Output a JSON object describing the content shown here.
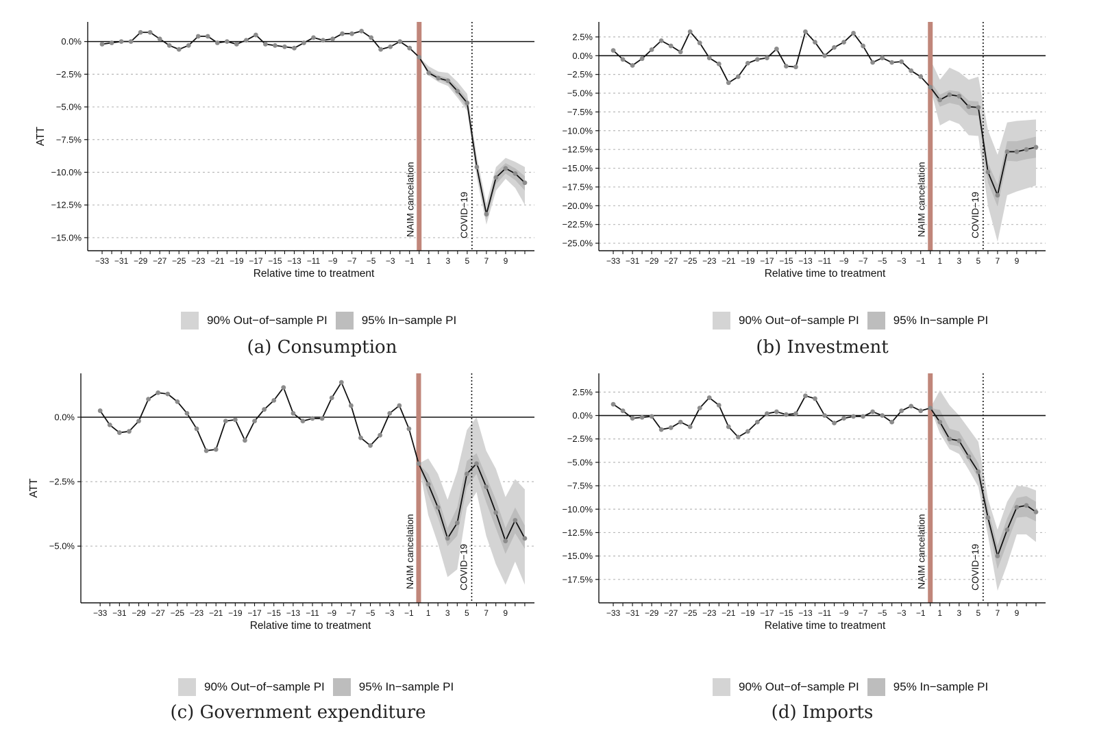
{
  "legend": {
    "out_label": "90% Out−of−sample PI",
    "in_label": "95% In−sample PI",
    "out_color": "#d4d4d4",
    "in_color": "#bdbdbd"
  },
  "chart_data": [
    {
      "type": "line",
      "caption": "(a) Consumption",
      "ylabel": "ATT",
      "xlabel": "Relative time to treatment",
      "x": [
        -33,
        -32,
        -31,
        -30,
        -29,
        -28,
        -27,
        -26,
        -25,
        -24,
        -23,
        -22,
        -21,
        -20,
        -19,
        -18,
        -17,
        -16,
        -15,
        -14,
        -13,
        -12,
        -11,
        -10,
        -9,
        -8,
        -7,
        -6,
        -5,
        -4,
        -3,
        -2,
        -1,
        0,
        1,
        2,
        3,
        4,
        5,
        6,
        7,
        8,
        9,
        10,
        11
      ],
      "values": [
        -0.2,
        -0.1,
        0.0,
        0.0,
        0.7,
        0.7,
        0.2,
        -0.3,
        -0.6,
        -0.3,
        0.4,
        0.4,
        -0.1,
        0.0,
        -0.2,
        0.1,
        0.5,
        -0.2,
        -0.3,
        -0.4,
        -0.5,
        -0.1,
        0.3,
        0.1,
        0.2,
        0.6,
        0.6,
        0.8,
        0.3,
        -0.6,
        -0.4,
        0.0,
        -0.5,
        -1.2,
        -2.4,
        -2.8,
        -3.0,
        -3.8,
        -4.7,
        -9.6,
        -13.2,
        -10.4,
        -9.7,
        -10.1,
        -10.8
      ],
      "band_start": 0,
      "pi_out_lower": [
        -1.2,
        -2.6,
        -3.1,
        -3.4,
        -4.3,
        -5.3,
        -10.4,
        -14.0,
        -11.4,
        -10.5,
        -11.2,
        -12.5
      ],
      "pi_out_upper": [
        -1.2,
        -1.9,
        -2.3,
        -2.4,
        -3.1,
        -4.0,
        -8.8,
        -12.4,
        -9.6,
        -8.9,
        -9.2,
        -9.6
      ],
      "pi_in_lower": [
        -1.2,
        -2.5,
        -2.9,
        -3.2,
        -4.1,
        -5.1,
        -9.9,
        -13.6,
        -10.9,
        -10.1,
        -10.6,
        -11.4
      ],
      "pi_in_upper": [
        -1.2,
        -2.2,
        -2.6,
        -2.8,
        -3.5,
        -4.4,
        -9.2,
        -12.9,
        -10.0,
        -9.3,
        -9.7,
        -10.3
      ],
      "ylim": [
        -16.0,
        1.5
      ],
      "yticks": [
        0,
        -2.5,
        -5,
        -7.5,
        -10,
        -12.5,
        -15
      ],
      "ytick_labels": [
        "0.0%",
        "−2.5%",
        "−5.0%",
        "−7.5%",
        "−10.0%",
        "−12.5%",
        "−15.0%"
      ],
      "xticks": [
        -33,
        -31,
        -29,
        -27,
        -25,
        -23,
        -21,
        -19,
        -17,
        -15,
        -13,
        -11,
        -9,
        -7,
        -5,
        -3,
        -1,
        1,
        3,
        5,
        7,
        9
      ],
      "xtick_labels": [
        "−33",
        "−31",
        "−29",
        "−27",
        "−25",
        "−23",
        "−21",
        "−19",
        "−17",
        "−15",
        "−13",
        "−11",
        "−9",
        "−7",
        "−5",
        "−3",
        "−1",
        "1",
        "3",
        "5",
        "7",
        "9"
      ],
      "xlim": [
        -34.5,
        12
      ],
      "vline_naim": 0,
      "vline_covid": 5.5,
      "naim_label": "NAIM cancelation",
      "covid_label": "COVID−19",
      "naim_color": "#c0867a",
      "line_color": "#111111"
    },
    {
      "type": "line",
      "caption": "(b) Investment",
      "ylabel": "ATT",
      "xlabel": "Relative time to treatment",
      "x": [
        -33,
        -32,
        -31,
        -30,
        -29,
        -28,
        -27,
        -26,
        -25,
        -24,
        -23,
        -22,
        -21,
        -20,
        -19,
        -18,
        -17,
        -16,
        -15,
        -14,
        -13,
        -12,
        -11,
        -10,
        -9,
        -8,
        -7,
        -6,
        -5,
        -4,
        -3,
        -2,
        -1,
        0,
        1,
        2,
        3,
        4,
        5,
        6,
        7,
        8,
        9,
        10,
        11
      ],
      "values": [
        0.7,
        -0.5,
        -1.3,
        -0.4,
        0.8,
        2.0,
        1.3,
        0.5,
        3.2,
        1.7,
        -0.3,
        -1.1,
        -3.6,
        -2.8,
        -1.0,
        -0.5,
        -0.3,
        0.9,
        -1.4,
        -1.5,
        3.2,
        1.8,
        0.0,
        1.1,
        1.8,
        3.0,
        1.3,
        -0.9,
        -0.3,
        -0.9,
        -0.8,
        -2.0,
        -2.8,
        -4.2,
        -5.9,
        -5.2,
        -5.4,
        -6.8,
        -6.9,
        -15.5,
        -18.6,
        -12.8,
        -12.8,
        -12.5,
        -12.2
      ],
      "band_start": 0,
      "pi_out_lower": [
        -4.2,
        -9.3,
        -8.6,
        -9.1,
        -10.6,
        -10.7,
        -20.0,
        -24.8,
        -18.6,
        -18.1,
        -17.7,
        -17.3
      ],
      "pi_out_upper": [
        -0.5,
        -3.2,
        -1.6,
        -2.2,
        -3.2,
        -2.8,
        -9.9,
        -13.2,
        -8.9,
        -8.7,
        -8.6,
        -8.5
      ],
      "pi_in_lower": [
        -4.2,
        -6.8,
        -6.3,
        -6.6,
        -7.9,
        -8.0,
        -16.9,
        -20.1,
        -14.0,
        -14.1,
        -13.8,
        -13.6
      ],
      "pi_in_upper": [
        -3.4,
        -5.2,
        -4.6,
        -4.8,
        -6.0,
        -6.1,
        -14.3,
        -17.2,
        -11.4,
        -11.4,
        -11.1,
        -10.8
      ],
      "ylim": [
        -26.0,
        4.5
      ],
      "yticks": [
        2.5,
        0,
        -2.5,
        -5,
        -7.5,
        -10,
        -12.5,
        -15,
        -17.5,
        -20,
        -22.5,
        -25
      ],
      "ytick_labels": [
        "2.5%",
        "0.0%",
        "−2.5%",
        "−5.0%",
        "−7.5%",
        "−10.0%",
        "−12.5%",
        "−15.0%",
        "−17.5%",
        "−20.0%",
        "−22.5%",
        "−25.0%"
      ],
      "xticks": [
        -33,
        -31,
        -29,
        -27,
        -25,
        -23,
        -21,
        -19,
        -17,
        -15,
        -13,
        -11,
        -9,
        -7,
        -5,
        -3,
        -1,
        1,
        3,
        5,
        7,
        9
      ],
      "xtick_labels": [
        "−33",
        "−31",
        "−29",
        "−27",
        "−25",
        "−23",
        "−21",
        "−19",
        "−17",
        "−15",
        "−13",
        "−11",
        "−9",
        "−7",
        "−5",
        "−3",
        "−1",
        "1",
        "3",
        "5",
        "7",
        "9"
      ],
      "xlim": [
        -34.5,
        12
      ],
      "vline_naim": 0,
      "vline_covid": 5.5,
      "naim_label": "NAIM cancelation",
      "covid_label": "COVID−19",
      "naim_color": "#c0867a",
      "line_color": "#111111"
    },
    {
      "type": "line",
      "caption": "(c) Government expenditure",
      "ylabel": "ATT",
      "xlabel": "Relative time to treatment",
      "x": [
        -33,
        -32,
        -31,
        -30,
        -29,
        -28,
        -27,
        -26,
        -25,
        -24,
        -23,
        -22,
        -21,
        -20,
        -19,
        -18,
        -17,
        -16,
        -15,
        -14,
        -13,
        -12,
        -11,
        -10,
        -9,
        -8,
        -7,
        -6,
        -5,
        -4,
        -3,
        -2,
        -1,
        0,
        1,
        2,
        3,
        4,
        5,
        6,
        7,
        8,
        9,
        10,
        11
      ],
      "values": [
        0.25,
        -0.3,
        -0.6,
        -0.55,
        -0.15,
        0.7,
        0.95,
        0.9,
        0.6,
        0.15,
        -0.45,
        -1.3,
        -1.25,
        -0.15,
        -0.1,
        -0.9,
        -0.15,
        0.3,
        0.65,
        1.15,
        0.15,
        -0.15,
        -0.05,
        -0.05,
        0.75,
        1.35,
        0.45,
        -0.8,
        -1.1,
        -0.7,
        0.15,
        0.45,
        -0.45,
        -1.8,
        -2.6,
        -3.5,
        -4.7,
        -4.1,
        -2.2,
        -1.8,
        -2.7,
        -3.7,
        -4.8,
        -4.0,
        -4.7
      ],
      "band_start": 0,
      "pi_out_lower": [
        -1.8,
        -3.8,
        -4.9,
        -6.2,
        -5.9,
        -3.5,
        -2.9,
        -4.6,
        -5.7,
        -6.5,
        -5.6,
        -6.5
      ],
      "pi_out_upper": [
        -1.8,
        -1.6,
        -2.2,
        -3.2,
        -2.1,
        -0.5,
        0.0,
        -1.3,
        -2.0,
        -3.1,
        -2.4,
        -2.8
      ],
      "pi_in_lower": [
        -1.8,
        -3.0,
        -3.9,
        -5.0,
        -4.6,
        -2.7,
        -2.2,
        -3.3,
        -4.3,
        -5.3,
        -4.5,
        -5.1
      ],
      "pi_in_upper": [
        -1.8,
        -2.2,
        -3.1,
        -4.3,
        -3.5,
        -1.7,
        -1.4,
        -2.3,
        -3.2,
        -4.3,
        -3.5,
        -4.2
      ],
      "ylim": [
        -7.2,
        1.7
      ],
      "yticks": [
        0,
        -2.5,
        -5
      ],
      "ytick_labels": [
        "0.0%",
        "−2.5%",
        "−5.0%"
      ],
      "xticks": [
        -33,
        -31,
        -29,
        -27,
        -25,
        -23,
        -21,
        -19,
        -17,
        -15,
        -13,
        -11,
        -9,
        -7,
        -5,
        -3,
        -1,
        1,
        3,
        5,
        7,
        9
      ],
      "xtick_labels": [
        "−33",
        "−31",
        "−29",
        "−27",
        "−25",
        "−23",
        "−21",
        "−19",
        "−17",
        "−15",
        "−13",
        "−11",
        "−9",
        "−7",
        "−5",
        "−3",
        "−1",
        "1",
        "3",
        "5",
        "7",
        "9"
      ],
      "xlim": [
        -35.0,
        12
      ],
      "vline_naim": 0,
      "vline_covid": 5.5,
      "naim_label": "NAIM cancelation",
      "covid_label": "COVID−19",
      "naim_color": "#c0867a",
      "line_color": "#111111"
    },
    {
      "type": "line",
      "caption": "(d) Imports",
      "ylabel": "ATT",
      "xlabel": "Relative time to treatment",
      "x": [
        -33,
        -32,
        -31,
        -30,
        -29,
        -28,
        -27,
        -26,
        -25,
        -24,
        -23,
        -22,
        -21,
        -20,
        -19,
        -18,
        -17,
        -16,
        -15,
        -14,
        -13,
        -12,
        -11,
        -10,
        -9,
        -8,
        -7,
        -6,
        -5,
        -4,
        -3,
        -2,
        -1,
        0,
        1,
        2,
        3,
        4,
        5,
        6,
        7,
        8,
        9,
        10,
        11
      ],
      "values": [
        1.2,
        0.5,
        -0.3,
        -0.2,
        -0.1,
        -1.5,
        -1.3,
        -0.7,
        -1.2,
        0.8,
        1.9,
        1.1,
        -1.2,
        -2.3,
        -1.7,
        -0.7,
        0.2,
        0.4,
        0.1,
        0.2,
        2.1,
        1.8,
        0.0,
        -0.8,
        -0.3,
        -0.1,
        -0.1,
        0.4,
        0.0,
        -0.7,
        0.5,
        1.0,
        0.5,
        0.8,
        -0.7,
        -2.5,
        -2.7,
        -4.4,
        -6.0,
        -10.9,
        -15.0,
        -12.2,
        -9.8,
        -9.6,
        -10.3
      ],
      "band_start": 0,
      "pi_out_lower": [
        0.8,
        -1.9,
        -3.6,
        -4.1,
        -5.8,
        -7.6,
        -12.8,
        -18.7,
        -15.9,
        -12.7,
        -12.7,
        -13.5
      ],
      "pi_out_upper": [
        0.8,
        2.7,
        1.1,
        0.0,
        -1.4,
        -2.8,
        -8.9,
        -12.2,
        -9.2,
        -7.5,
        -7.6,
        -8.0
      ],
      "pi_in_lower": [
        0.8,
        -1.2,
        -3.1,
        -3.3,
        -4.9,
        -6.7,
        -11.6,
        -16.4,
        -13.6,
        -10.9,
        -10.8,
        -11.3
      ],
      "pi_in_upper": [
        0.8,
        0.6,
        -1.4,
        -1.7,
        -3.4,
        -5.1,
        -9.9,
        -13.9,
        -11.0,
        -8.8,
        -8.6,
        -9.2
      ],
      "ylim": [
        -20.0,
        4.5
      ],
      "yticks": [
        2.5,
        0,
        -2.5,
        -5,
        -7.5,
        -10,
        -12.5,
        -15,
        -17.5
      ],
      "ytick_labels": [
        "2.5%",
        "0.0%",
        "−2.5%",
        "−5.0%",
        "−7.5%",
        "−10.0%",
        "−12.5%",
        "−15.0%",
        "−17.5%"
      ],
      "xticks": [
        -33,
        -31,
        -29,
        -27,
        -25,
        -23,
        -21,
        -19,
        -17,
        -15,
        -13,
        -11,
        -9,
        -7,
        -5,
        -3,
        -1,
        1,
        3,
        5,
        7,
        9
      ],
      "xtick_labels": [
        "−33",
        "−31",
        "−29",
        "−27",
        "−25",
        "−23",
        "−21",
        "−19",
        "−17",
        "−15",
        "−13",
        "−11",
        "−9",
        "−7",
        "−5",
        "−3",
        "−1",
        "1",
        "3",
        "5",
        "7",
        "9"
      ],
      "xlim": [
        -34.5,
        12
      ],
      "vline_naim": 0,
      "vline_covid": 5.5,
      "naim_label": "NAIM cancelation",
      "covid_label": "COVID−19",
      "naim_color": "#c0867a",
      "line_color": "#111111"
    }
  ]
}
